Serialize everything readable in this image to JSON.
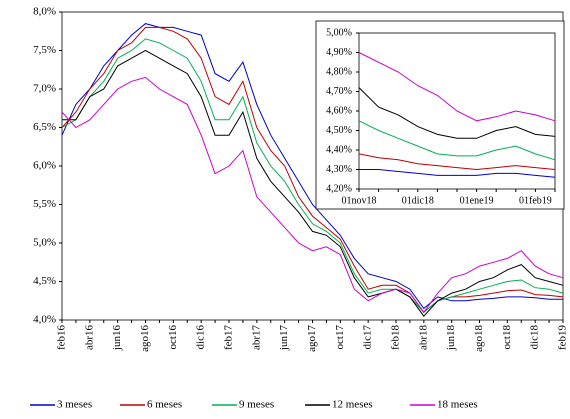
{
  "chart_data": [
    {
      "type": "line",
      "categories": [
        "feb16",
        null,
        "abr16",
        null,
        "jun16",
        null,
        "ago16",
        null,
        "oct16",
        null,
        "dic16",
        null,
        "feb17",
        null,
        "abr17",
        null,
        "jun17",
        null,
        "ago17",
        null,
        "oct17",
        null,
        "dic17",
        null,
        "feb18",
        null,
        "abr18",
        null,
        "jun18",
        null,
        "ago18",
        null,
        "oct18",
        null,
        "dic18",
        null,
        "feb19"
      ],
      "ylim": [
        4.0,
        8.0
      ],
      "yticks": [
        {
          "value": 4.0,
          "label": "4,0%"
        },
        {
          "value": 4.5,
          "label": "4,5%"
        },
        {
          "value": 5.0,
          "label": "5,0%"
        },
        {
          "value": 5.5,
          "label": "5,5%"
        },
        {
          "value": 6.0,
          "label": "6,0%"
        },
        {
          "value": 6.5,
          "label": "6,5%"
        },
        {
          "value": 7.0,
          "label": "7,0%"
        },
        {
          "value": 7.5,
          "label": "7,5%"
        },
        {
          "value": 8.0,
          "label": "8,0%"
        }
      ],
      "legend": "bottom",
      "series": [
        {
          "name": "3 meses",
          "color": "#0000cc",
          "values": [
            6.4,
            6.8,
            7.0,
            7.3,
            7.5,
            7.7,
            7.85,
            7.8,
            7.8,
            7.75,
            7.7,
            7.2,
            7.1,
            7.35,
            6.8,
            6.4,
            6.1,
            5.8,
            5.5,
            5.3,
            5.1,
            4.8,
            4.6,
            4.55,
            4.5,
            4.4,
            4.15,
            4.3,
            4.25,
            4.25,
            4.27,
            4.28,
            4.3,
            4.3,
            4.29,
            4.27,
            4.27
          ]
        },
        {
          "name": "6 meses",
          "color": "#c00000",
          "values": [
            6.5,
            6.7,
            7.0,
            7.2,
            7.5,
            7.6,
            7.8,
            7.8,
            7.75,
            7.65,
            7.4,
            6.9,
            6.8,
            7.1,
            6.5,
            6.2,
            6.0,
            5.6,
            5.35,
            5.2,
            5.05,
            4.7,
            4.4,
            4.45,
            4.45,
            4.35,
            4.1,
            4.25,
            4.3,
            4.3,
            4.32,
            4.35,
            4.38,
            4.39,
            4.33,
            4.32,
            4.3
          ]
        },
        {
          "name": "9 meses",
          "color": "#00b050",
          "values": [
            6.5,
            6.6,
            6.9,
            7.1,
            7.4,
            7.5,
            7.65,
            7.6,
            7.5,
            7.4,
            7.1,
            6.6,
            6.6,
            6.9,
            6.3,
            6.0,
            5.8,
            5.5,
            5.25,
            5.15,
            5.0,
            4.6,
            4.35,
            4.4,
            4.4,
            4.3,
            4.1,
            4.25,
            4.3,
            4.35,
            4.4,
            4.45,
            4.5,
            4.52,
            4.42,
            4.4,
            4.35
          ]
        },
        {
          "name": "12 meses",
          "color": "#000000",
          "values": [
            6.6,
            6.6,
            6.9,
            7.0,
            7.3,
            7.4,
            7.5,
            7.4,
            7.3,
            7.2,
            6.9,
            6.4,
            6.4,
            6.7,
            6.1,
            5.8,
            5.6,
            5.4,
            5.15,
            5.1,
            4.95,
            4.55,
            4.3,
            4.35,
            4.4,
            4.3,
            4.05,
            4.25,
            4.35,
            4.4,
            4.5,
            4.55,
            4.65,
            4.72,
            4.55,
            4.5,
            4.45
          ]
        },
        {
          "name": "18 meses",
          "color": "#cc00cc",
          "values": [
            6.7,
            6.5,
            6.6,
            6.8,
            7.0,
            7.1,
            7.15,
            7.0,
            6.9,
            6.8,
            6.4,
            5.9,
            6.0,
            6.2,
            5.6,
            5.4,
            5.2,
            5.0,
            4.9,
            4.95,
            4.85,
            4.4,
            4.25,
            4.35,
            4.4,
            4.35,
            4.1,
            4.35,
            4.55,
            4.6,
            4.7,
            4.75,
            4.8,
            4.9,
            4.7,
            4.6,
            4.55
          ]
        }
      ]
    },
    {
      "type": "line",
      "categories": [
        "01nov18",
        null,
        null,
        "01dic18",
        null,
        null,
        "01ene19",
        null,
        null,
        "01feb19",
        null
      ],
      "ylim": [
        4.2,
        5.0
      ],
      "yticks": [
        {
          "value": 4.2,
          "label": "4,20%"
        },
        {
          "value": 4.3,
          "label": "4,30%"
        },
        {
          "value": 4.4,
          "label": "4,40%"
        },
        {
          "value": 4.5,
          "label": "4,50%"
        },
        {
          "value": 4.6,
          "label": "4,60%"
        },
        {
          "value": 4.7,
          "label": "4,70%"
        },
        {
          "value": 4.8,
          "label": "4,80%"
        },
        {
          "value": 4.9,
          "label": "4,90%"
        },
        {
          "value": 5.0,
          "label": "5,00%"
        }
      ],
      "series": [
        {
          "color": "#0000cc",
          "values": [
            4.3,
            4.3,
            4.29,
            4.28,
            4.27,
            4.27,
            4.27,
            4.28,
            4.28,
            4.27,
            4.26
          ]
        },
        {
          "color": "#c00000",
          "values": [
            4.38,
            4.36,
            4.35,
            4.33,
            4.32,
            4.31,
            4.3,
            4.31,
            4.32,
            4.31,
            4.3
          ]
        },
        {
          "color": "#00b050",
          "values": [
            4.55,
            4.5,
            4.46,
            4.42,
            4.38,
            4.37,
            4.37,
            4.4,
            4.42,
            4.38,
            4.35
          ]
        },
        {
          "color": "#000000",
          "values": [
            4.72,
            4.62,
            4.58,
            4.52,
            4.48,
            4.46,
            4.46,
            4.5,
            4.52,
            4.48,
            4.47
          ]
        },
        {
          "color": "#cc00cc",
          "values": [
            4.9,
            4.85,
            4.8,
            4.73,
            4.68,
            4.6,
            4.55,
            4.57,
            4.6,
            4.58,
            4.55
          ]
        }
      ]
    }
  ]
}
